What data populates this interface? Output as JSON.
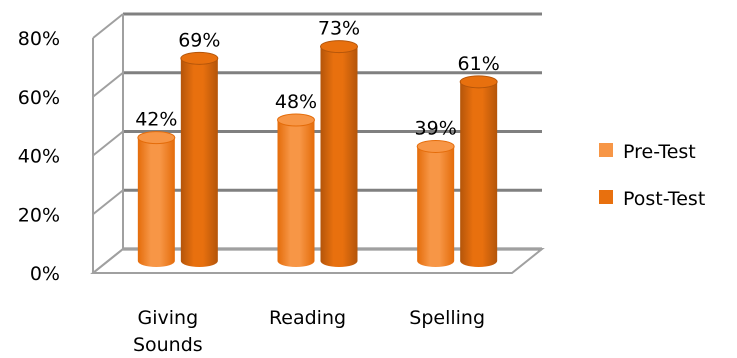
{
  "chart_data": {
    "type": "bar",
    "categories": [
      "Giving Sounds",
      "Reading",
      "Spelling"
    ],
    "category_lines": [
      [
        "Giving",
        "Sounds"
      ],
      [
        "Reading"
      ],
      [
        "Spelling"
      ]
    ],
    "series": [
      {
        "name": "Pre-Test",
        "values": [
          42,
          48,
          39
        ],
        "labels": [
          "42%",
          "48%",
          "39%"
        ],
        "color": "#f79646",
        "color_dark": "#e46c0a"
      },
      {
        "name": "Post-Test",
        "values": [
          69,
          73,
          61
        ],
        "labels": [
          "69%",
          "73%",
          "61%"
        ],
        "color": "#e8700e",
        "color_dark": "#b4550a"
      }
    ],
    "ylim": [
      0,
      80
    ],
    "yticks": [
      "0%",
      "20%",
      "40%",
      "60%",
      "80%"
    ],
    "grid": true,
    "legend_position": "right",
    "style": "3d-cylinder"
  }
}
